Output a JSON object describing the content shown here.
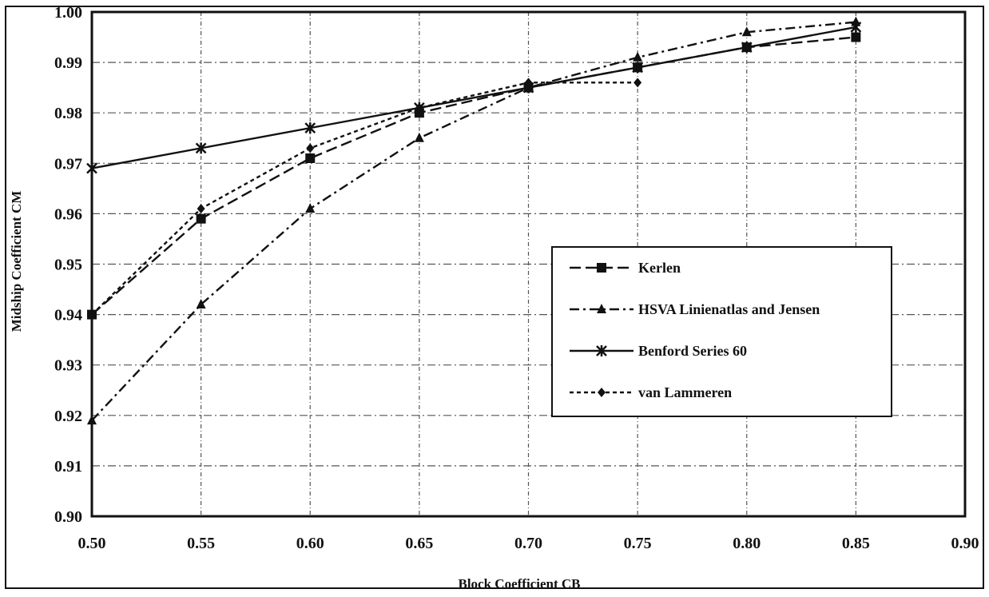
{
  "chart_data": {
    "type": "line",
    "title": "",
    "xlabel": "Block Coefficient CB",
    "ylabel": "Midship Coefficient CM",
    "xlim": [
      0.5,
      0.9
    ],
    "ylim": [
      0.9,
      1.0
    ],
    "x_ticks": [
      "0.50",
      "0.55",
      "0.60",
      "0.65",
      "0.70",
      "0.75",
      "0.80",
      "0.85",
      "0.90"
    ],
    "y_ticks": [
      "0.90",
      "0.91",
      "0.92",
      "0.93",
      "0.94",
      "0.95",
      "0.96",
      "0.97",
      "0.98",
      "0.99",
      "1.00"
    ],
    "grid": true,
    "legend_position": "right",
    "series": [
      {
        "name": "Kerlen",
        "marker": "square",
        "dash": "long-dash",
        "x": [
          0.5,
          0.55,
          0.6,
          0.65,
          0.7,
          0.75,
          0.8,
          0.85
        ],
        "y": [
          0.94,
          0.959,
          0.971,
          0.98,
          0.985,
          0.989,
          0.993,
          0.995
        ]
      },
      {
        "name": "HSVA Linienatlas and Jensen",
        "marker": "triangle",
        "dash": "dash-dot",
        "x": [
          0.5,
          0.55,
          0.6,
          0.65,
          0.7,
          0.75,
          0.8,
          0.85
        ],
        "y": [
          0.919,
          0.942,
          0.961,
          0.975,
          0.985,
          0.991,
          0.996,
          0.998
        ]
      },
      {
        "name": "Benford Series 60",
        "marker": "star",
        "dash": "solid",
        "x": [
          0.5,
          0.55,
          0.6,
          0.65,
          0.7,
          0.75,
          0.8,
          0.85
        ],
        "y": [
          0.969,
          0.973,
          0.977,
          0.981,
          0.985,
          0.989,
          0.993,
          0.997
        ]
      },
      {
        "name": "van Lammeren",
        "marker": "diamond",
        "dash": "short-dash",
        "x": [
          0.5,
          0.55,
          0.6,
          0.65,
          0.7,
          0.75
        ],
        "y": [
          0.94,
          0.961,
          0.973,
          0.981,
          0.986,
          0.986
        ]
      }
    ]
  }
}
